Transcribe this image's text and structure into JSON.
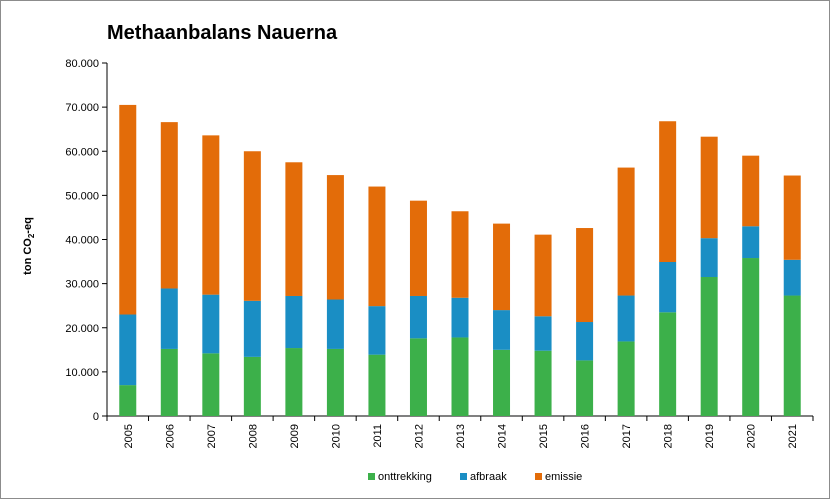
{
  "chart_data": {
    "type": "bar",
    "stacked": true,
    "title": "Methaanbalans Nauerna",
    "ylabel": {
      "main": "ton CO",
      "sub": "2",
      "suffix": "-eq"
    },
    "xlabel": "",
    "ylim": [
      0,
      80000
    ],
    "ytick_values": [
      0,
      10000,
      20000,
      30000,
      40000,
      50000,
      60000,
      70000,
      80000
    ],
    "ytick_labels": [
      "0",
      "10.000",
      "20.000",
      "30.000",
      "40.000",
      "50.000",
      "60.000",
      "70.000",
      "80.000"
    ],
    "grid": false,
    "legend_position": "bottom",
    "categories": [
      "2005",
      "2006",
      "2007",
      "2008",
      "2009",
      "2010",
      "2011",
      "2012",
      "2013",
      "2014",
      "2015",
      "2016",
      "2017",
      "2018",
      "2019",
      "2020",
      "2021"
    ],
    "series": [
      {
        "name": "onttrekking",
        "color": "#3cb04a",
        "values": [
          7000,
          15200,
          14200,
          13400,
          15400,
          15200,
          13900,
          17600,
          17800,
          15000,
          14800,
          12600,
          16900,
          23500,
          31500,
          35800,
          27300
        ]
      },
      {
        "name": "afbraak",
        "color": "#1a8ec4",
        "values": [
          16000,
          13700,
          13300,
          12700,
          11800,
          11200,
          11000,
          9600,
          9000,
          9000,
          7800,
          8700,
          10400,
          11400,
          8800,
          7200,
          8100
        ]
      },
      {
        "name": "emissie",
        "color": "#e36c09",
        "values": [
          47500,
          37700,
          36100,
          33900,
          30300,
          28200,
          27100,
          21600,
          19600,
          19600,
          18500,
          21300,
          29000,
          31900,
          23000,
          16000,
          19100
        ]
      }
    ]
  }
}
